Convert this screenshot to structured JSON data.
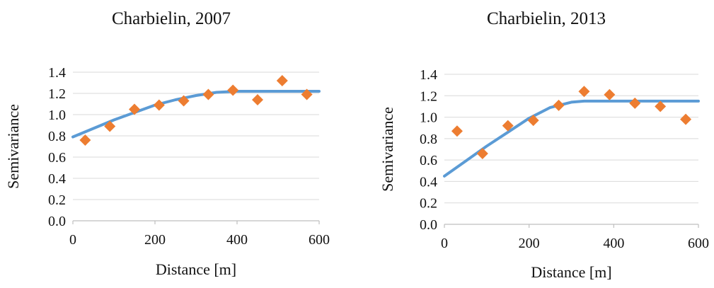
{
  "chart_data": [
    {
      "type": "scatter",
      "title": "Charbielin, 2007",
      "xlabel": "Distance [m]",
      "ylabel": "Semivariance",
      "xlim": [
        0,
        600
      ],
      "ylim": [
        0,
        1.4
      ],
      "x_ticks": [
        "0",
        "200",
        "400",
        "600"
      ],
      "y_ticks": [
        "0.0",
        "0.2",
        "0.4",
        "0.6",
        "0.8",
        "1.0",
        "1.2",
        "1.4"
      ],
      "grid": "horizontal",
      "legend": "none",
      "series": [
        {
          "kind": "points",
          "color": "#ED7D31",
          "marker": "diamond",
          "x": [
            30,
            90,
            150,
            210,
            270,
            330,
            390,
            450,
            510,
            570
          ],
          "y": [
            0.76,
            0.89,
            1.05,
            1.09,
            1.13,
            1.19,
            1.23,
            1.14,
            1.32,
            1.19
          ]
        },
        {
          "kind": "fit-line",
          "color": "#5B9BD5",
          "x": [
            0,
            50,
            100,
            150,
            200,
            250,
            300,
            350,
            400,
            450,
            500,
            550,
            600
          ],
          "y": [
            0.79,
            0.87,
            0.95,
            1.02,
            1.09,
            1.14,
            1.18,
            1.21,
            1.22,
            1.22,
            1.22,
            1.22,
            1.22
          ]
        }
      ]
    },
    {
      "type": "scatter",
      "title": "Charbielin, 2013",
      "xlabel": "Distance [m]",
      "ylabel": "Semivariance",
      "xlim": [
        0,
        600
      ],
      "ylim": [
        0,
        1.4
      ],
      "x_ticks": [
        "0",
        "200",
        "400",
        "600"
      ],
      "y_ticks": [
        "0.0",
        "0.2",
        "0.4",
        "0.6",
        "0.8",
        "1.0",
        "1.2",
        "1.4"
      ],
      "grid": "horizontal",
      "legend": "none",
      "series": [
        {
          "kind": "points",
          "color": "#ED7D31",
          "marker": "diamond",
          "x": [
            30,
            90,
            150,
            210,
            270,
            330,
            390,
            450,
            510,
            570
          ],
          "y": [
            0.87,
            0.66,
            0.92,
            0.97,
            1.11,
            1.24,
            1.21,
            1.13,
            1.1,
            0.98
          ]
        },
        {
          "kind": "fit-line",
          "color": "#5B9BD5",
          "x": [
            0,
            50,
            100,
            150,
            200,
            250,
            300,
            330,
            400,
            500,
            600
          ],
          "y": [
            0.45,
            0.59,
            0.73,
            0.86,
            0.99,
            1.09,
            1.14,
            1.15,
            1.15,
            1.15,
            1.15
          ]
        }
      ]
    }
  ]
}
